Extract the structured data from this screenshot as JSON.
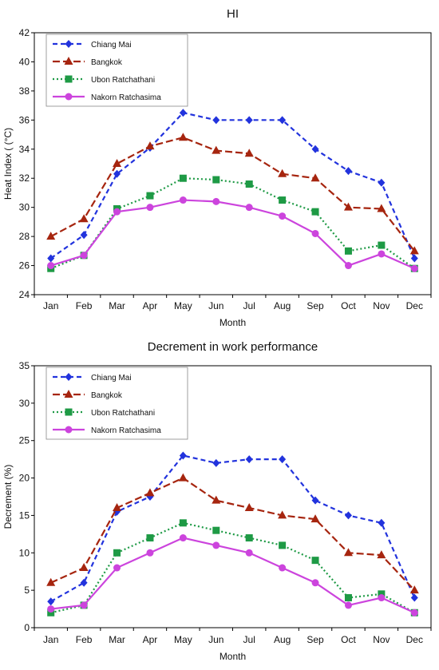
{
  "chart_data": [
    {
      "type": "line",
      "title": "HI",
      "xlabel": "Month",
      "ylabel": "Heat Index ( (°C)",
      "categories": [
        "Jan",
        "Feb",
        "Mar",
        "Apr",
        "May",
        "Jun",
        "Jul",
        "Aug",
        "Sep",
        "Oct",
        "Nov",
        "Dec"
      ],
      "ylim": [
        24,
        42
      ],
      "yticks": [
        24,
        26,
        28,
        30,
        32,
        34,
        36,
        38,
        40,
        42
      ],
      "legend_position": "top-left",
      "grid": false,
      "series": [
        {
          "name": "Chiang Mai",
          "color": "#2233dd",
          "marker": "diamond",
          "dash": "dashed",
          "values": [
            26.5,
            28.1,
            32.3,
            34.1,
            36.5,
            36.0,
            36.0,
            36.0,
            34.0,
            32.5,
            31.7,
            26.5
          ]
        },
        {
          "name": "Bangkok",
          "color": "#a6250f",
          "marker": "triangle",
          "dash": "longdash",
          "values": [
            28.0,
            29.2,
            33.0,
            34.2,
            34.8,
            33.9,
            33.7,
            32.3,
            32.0,
            30.0,
            29.9,
            27.0
          ]
        },
        {
          "name": "Ubon Ratchathani",
          "color": "#1e9a45",
          "marker": "square",
          "dash": "dotted",
          "values": [
            25.8,
            26.7,
            29.9,
            30.8,
            32.0,
            31.9,
            31.6,
            30.5,
            29.7,
            27.0,
            27.4,
            25.8
          ]
        },
        {
          "name": "Nakorn Ratchasima",
          "color": "#cc44dd",
          "marker": "circle",
          "dash": "solid",
          "values": [
            26.0,
            26.7,
            29.7,
            30.0,
            30.5,
            30.4,
            30.0,
            29.4,
            28.2,
            26.0,
            26.8,
            25.8
          ]
        }
      ]
    },
    {
      "type": "line",
      "title": "Decrement in work performance",
      "xlabel": "Month",
      "ylabel": "Decrement (%)",
      "categories": [
        "Jan",
        "Feb",
        "Mar",
        "Apr",
        "May",
        "Jun",
        "Jul",
        "Aug",
        "Sep",
        "Oct",
        "Nov",
        "Dec"
      ],
      "ylim": [
        0,
        35
      ],
      "yticks": [
        0,
        5,
        10,
        15,
        20,
        25,
        30,
        35
      ],
      "legend_position": "top-left",
      "grid": false,
      "series": [
        {
          "name": "Chiang Mai",
          "color": "#2233dd",
          "marker": "diamond",
          "dash": "dashed",
          "values": [
            3.5,
            6.0,
            15.5,
            17.5,
            23.0,
            22.0,
            22.5,
            22.5,
            17.0,
            15.0,
            14.0,
            4.0
          ]
        },
        {
          "name": "Bangkok",
          "color": "#a6250f",
          "marker": "triangle",
          "dash": "longdash",
          "values": [
            6.0,
            8.0,
            16.0,
            18.0,
            20.0,
            17.0,
            16.0,
            15.0,
            14.5,
            10.0,
            9.7,
            5.0
          ]
        },
        {
          "name": "Ubon Ratchathani",
          "color": "#1e9a45",
          "marker": "square",
          "dash": "dotted",
          "values": [
            2.0,
            3.0,
            10.0,
            12.0,
            14.0,
            13.0,
            12.0,
            11.0,
            9.0,
            4.0,
            4.5,
            2.0
          ]
        },
        {
          "name": "Nakorn Ratchasima",
          "color": "#cc44dd",
          "marker": "circle",
          "dash": "solid",
          "values": [
            2.5,
            3.0,
            8.0,
            10.0,
            12.0,
            11.0,
            10.0,
            8.0,
            6.0,
            3.0,
            4.0,
            2.0
          ]
        }
      ]
    }
  ]
}
